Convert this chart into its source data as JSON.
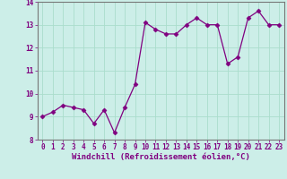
{
  "x": [
    0,
    1,
    2,
    3,
    4,
    5,
    6,
    7,
    8,
    9,
    10,
    11,
    12,
    13,
    14,
    15,
    16,
    17,
    18,
    19,
    20,
    21,
    22,
    23
  ],
  "y": [
    9.0,
    9.2,
    9.5,
    9.4,
    9.3,
    8.7,
    9.3,
    8.3,
    9.4,
    10.4,
    13.1,
    12.8,
    12.6,
    12.6,
    13.0,
    13.3,
    13.0,
    13.0,
    11.3,
    11.6,
    13.3,
    13.6,
    13.0,
    13.0
  ],
  "line_color": "#800080",
  "marker": "D",
  "marker_size": 2.5,
  "bg_color": "#cceee8",
  "grid_color": "#aaddcc",
  "xlabel": "Windchill (Refroidissement éolien,°C)",
  "xlabel_color": "#800080",
  "tick_color": "#800080",
  "spine_color": "#777777",
  "ylim": [
    8,
    14
  ],
  "xlim": [
    -0.5,
    23.5
  ],
  "yticks": [
    8,
    9,
    10,
    11,
    12,
    13,
    14
  ],
  "xticks": [
    0,
    1,
    2,
    3,
    4,
    5,
    6,
    7,
    8,
    9,
    10,
    11,
    12,
    13,
    14,
    15,
    16,
    17,
    18,
    19,
    20,
    21,
    22,
    23
  ],
  "tick_fontsize": 5.5,
  "xlabel_fontsize": 6.5,
  "ylabel_fontsize": 6.5
}
